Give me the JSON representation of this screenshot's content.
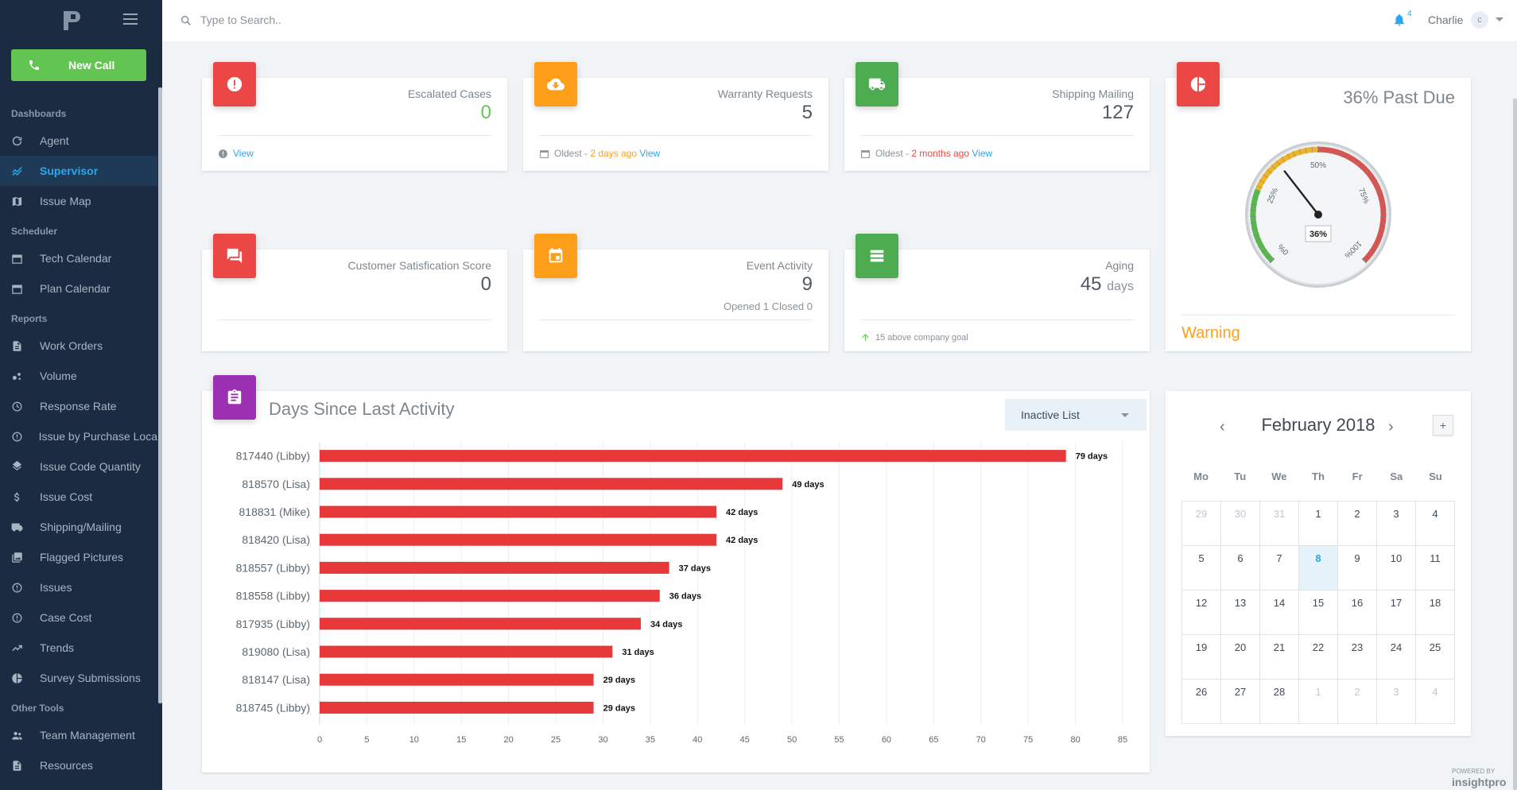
{
  "topbar": {
    "search_placeholder": "Type to Search..",
    "notification_count": "4",
    "user_name": "Charlie",
    "avatar_initial": "c"
  },
  "sidebar": {
    "new_call_label": "New Call",
    "sections": [
      {
        "title": "Dashboards",
        "items": [
          {
            "label": "Agent",
            "icon": "refresh-icon",
            "active": false
          },
          {
            "label": "Supervisor",
            "icon": "trend-icon",
            "active": true
          },
          {
            "label": "Issue Map",
            "icon": "map-icon",
            "active": false
          }
        ]
      },
      {
        "title": "Scheduler",
        "items": [
          {
            "label": "Tech Calendar",
            "icon": "calendar-icon",
            "active": false
          },
          {
            "label": "Plan Calendar",
            "icon": "calendar-icon",
            "active": false
          }
        ]
      },
      {
        "title": "Reports",
        "items": [
          {
            "label": "Work Orders",
            "icon": "document-icon",
            "active": false
          },
          {
            "label": "Volume",
            "icon": "bubbles-icon",
            "active": false
          },
          {
            "label": "Response Rate",
            "icon": "history-icon",
            "active": false
          },
          {
            "label": "Issue by Purchase Loca",
            "icon": "info-icon",
            "active": false
          },
          {
            "label": "Issue Code Quantity",
            "icon": "layers-icon",
            "active": false
          },
          {
            "label": "Issue Cost",
            "icon": "dollar-icon",
            "active": false
          },
          {
            "label": "Shipping/Mailing",
            "icon": "truck-icon",
            "active": false
          },
          {
            "label": "Flagged Pictures",
            "icon": "pictures-icon",
            "active": false
          },
          {
            "label": "Issues",
            "icon": "info-icon",
            "active": false
          },
          {
            "label": "Case Cost",
            "icon": "info-icon",
            "active": false
          },
          {
            "label": "Trends",
            "icon": "trending-up-icon",
            "active": false
          },
          {
            "label": "Survey Submissions",
            "icon": "pie-icon",
            "active": false
          }
        ]
      },
      {
        "title": "Other Tools",
        "items": [
          {
            "label": "Team Management",
            "icon": "people-icon",
            "active": false
          },
          {
            "label": "Resources",
            "icon": "document-icon",
            "active": false
          }
        ]
      }
    ]
  },
  "cards": {
    "escalated": {
      "title": "Escalated Cases",
      "value": "0",
      "link": "View"
    },
    "warranty": {
      "title": "Warranty Requests",
      "value": "5",
      "oldest_label": "Oldest - ",
      "oldest_value": "2 days ago",
      "link": "View"
    },
    "shipping": {
      "title": "Shipping Mailing",
      "value": "127",
      "oldest_label": "Oldest - ",
      "oldest_value": "2 months ago",
      "link": "View"
    },
    "csat": {
      "title": "Customer Satisfication Score",
      "value": "0"
    },
    "event": {
      "title": "Event Activity",
      "value": "9",
      "sub": "Opened 1 Closed 0"
    },
    "aging": {
      "title": "Aging",
      "value": "45",
      "unit": "days",
      "foot": "15 above company goal"
    },
    "past_due": {
      "title": "36% Past Due",
      "gauge_value": 36,
      "gauge_label": "36%",
      "status": "Warning",
      "tick_labels": [
        "0%",
        "25%",
        "50%",
        "75%",
        "100%"
      ]
    }
  },
  "chart_data": {
    "type": "bar",
    "orientation": "horizontal",
    "title": "Days Since Last Activity",
    "categories": [
      "817440 (Libby)",
      "818570 (Lisa)",
      "818831 (Mike)",
      "818420 (Lisa)",
      "818557 (Libby)",
      "818558 (Libby)",
      "817935 (Libby)",
      "819080 (Lisa)",
      "818147 (Lisa)",
      "818745 (Libby)"
    ],
    "values": [
      79,
      49,
      42,
      42,
      37,
      36,
      34,
      31,
      29,
      29
    ],
    "data_labels": [
      "79 days",
      "49 days",
      "42 days",
      "42 days",
      "37 days",
      "36 days",
      "34 days",
      "31 days",
      "29 days",
      "29 days"
    ],
    "xlim": [
      0,
      85
    ],
    "x_ticks": [
      0,
      5,
      10,
      15,
      20,
      25,
      30,
      35,
      40,
      45,
      50,
      55,
      60,
      65,
      70,
      75,
      80,
      85
    ],
    "grid": true,
    "bar_color": "#e8393a"
  },
  "chart_card": {
    "dropdown_value": "Inactive List"
  },
  "calendar": {
    "title": "February 2018",
    "prev": "‹",
    "next": "›",
    "add": "+",
    "weekdays": [
      "Mo",
      "Tu",
      "We",
      "Th",
      "Fr",
      "Sa",
      "Su"
    ],
    "days": [
      {
        "d": "29",
        "muted": true
      },
      {
        "d": "30",
        "muted": true
      },
      {
        "d": "31",
        "muted": true
      },
      {
        "d": "1"
      },
      {
        "d": "2"
      },
      {
        "d": "3"
      },
      {
        "d": "4"
      },
      {
        "d": "5"
      },
      {
        "d": "6"
      },
      {
        "d": "7"
      },
      {
        "d": "8",
        "today": true
      },
      {
        "d": "9"
      },
      {
        "d": "10"
      },
      {
        "d": "11"
      },
      {
        "d": "12"
      },
      {
        "d": "13"
      },
      {
        "d": "14"
      },
      {
        "d": "15"
      },
      {
        "d": "16"
      },
      {
        "d": "17"
      },
      {
        "d": "18"
      },
      {
        "d": "19"
      },
      {
        "d": "20"
      },
      {
        "d": "21"
      },
      {
        "d": "22"
      },
      {
        "d": "23"
      },
      {
        "d": "24"
      },
      {
        "d": "25"
      },
      {
        "d": "26"
      },
      {
        "d": "27"
      },
      {
        "d": "28"
      },
      {
        "d": "1",
        "muted": true
      },
      {
        "d": "2",
        "muted": true
      },
      {
        "d": "3",
        "muted": true
      },
      {
        "d": "4",
        "muted": true
      }
    ]
  },
  "footer": {
    "powered_by": "POWERED BY",
    "brand": "insightpro"
  }
}
